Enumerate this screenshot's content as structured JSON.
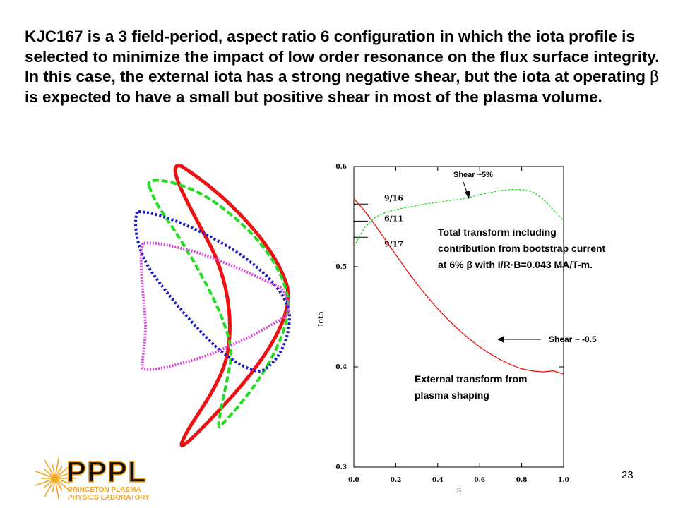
{
  "slide": {
    "heading_parts": [
      "KJC167 is a 3 field-period, aspect ratio 6 configuration in which the iota profile is selected to minimize the impact of low order resonance on the flux surface integrity. In this case, the external iota has a strong negative shear, but the iota at operating ",
      "β",
      " is expected to have a small but positive shear in most of the plasma volume."
    ],
    "page_number": "23"
  },
  "logo": {
    "wordmark": "PPPL",
    "line1": "PRINCETON PLASMA",
    "line2": "PHYSICS LABORATORY",
    "color": "#f5a623",
    "dark": "#111111"
  },
  "flux_surfaces": {
    "colors": [
      "#ee1111",
      "#22dd22",
      "#1a1acc",
      "#dd44dd"
    ],
    "styles": [
      "solid",
      "dashed",
      "dotted",
      "dotted"
    ]
  },
  "chart_data": {
    "type": "line",
    "xlabel": "s",
    "ylabel": "Iota",
    "xlim": [
      0.0,
      1.0
    ],
    "ylim": [
      0.3,
      0.6
    ],
    "x_ticks": [
      "0.0",
      "0.2",
      "0.4",
      "0.6",
      "0.8",
      "1.0"
    ],
    "y_ticks": [
      "0.3",
      "0.4",
      "0.5",
      "0.6"
    ],
    "series": [
      {
        "color": "#ee1111",
        "style": "solid",
        "x": [
          0.0,
          0.05,
          0.1,
          0.15,
          0.2,
          0.25,
          0.3,
          0.35,
          0.4,
          0.45,
          0.5,
          0.55,
          0.6,
          0.65,
          0.7,
          0.75,
          0.8,
          0.85,
          0.9,
          0.95,
          1.0
        ],
        "y": [
          0.568,
          0.556,
          0.542,
          0.527,
          0.512,
          0.497,
          0.483,
          0.47,
          0.458,
          0.447,
          0.437,
          0.428,
          0.42,
          0.413,
          0.407,
          0.402,
          0.398,
          0.396,
          0.395,
          0.396,
          0.393
        ]
      },
      {
        "color": "#22dd22",
        "style": "dashed",
        "x": [
          0.0,
          0.05,
          0.1,
          0.15,
          0.2,
          0.25,
          0.3,
          0.35,
          0.4,
          0.45,
          0.5,
          0.55,
          0.6,
          0.65,
          0.7,
          0.75,
          0.8,
          0.85,
          0.9,
          0.95,
          1.0
        ],
        "y": [
          0.52,
          0.539,
          0.549,
          0.554,
          0.557,
          0.559,
          0.561,
          0.563,
          0.564,
          0.566,
          0.567,
          0.569,
          0.572,
          0.574,
          0.576,
          0.577,
          0.577,
          0.575,
          0.568,
          0.557,
          0.546
        ]
      }
    ],
    "resonances": [
      {
        "label": "9/16",
        "value": 0.5625
      },
      {
        "label": "6/11",
        "value": 0.5455
      },
      {
        "label": "9/17",
        "value": 0.5294
      }
    ],
    "annotations": {
      "shear_top": "Shear ~5%",
      "total_transform": [
        "Total transform including",
        "contribution from bootstrap current",
        "at 6% β with I/R·B=0.043 MA/T-m."
      ],
      "shear_bottom": "Shear ~ -0.5",
      "external": [
        "External transform from",
        "plasma shaping"
      ]
    }
  }
}
